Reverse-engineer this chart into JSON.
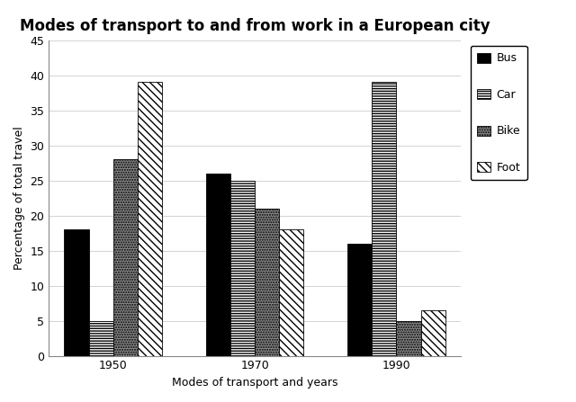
{
  "title": "Modes of transport to and from work in a European city",
  "xlabel": "Modes of transport and years",
  "ylabel": "Percentage of total travel",
  "years": [
    "1950",
    "1970",
    "1990"
  ],
  "categories": [
    "Bus",
    "Car",
    "Bike",
    "Foot"
  ],
  "values": {
    "Bus": [
      18,
      26,
      16
    ],
    "Car": [
      5,
      25,
      39
    ],
    "Bike": [
      28,
      21,
      5
    ],
    "Foot": [
      39,
      18,
      6.5
    ]
  },
  "ylim": [
    0,
    45
  ],
  "yticks": [
    0,
    5,
    10,
    15,
    20,
    25,
    30,
    35,
    40,
    45
  ],
  "bar_width": 0.19,
  "background_color": "#ffffff",
  "title_fontsize": 12,
  "axis_label_fontsize": 9,
  "tick_fontsize": 9,
  "legend_fontsize": 9
}
